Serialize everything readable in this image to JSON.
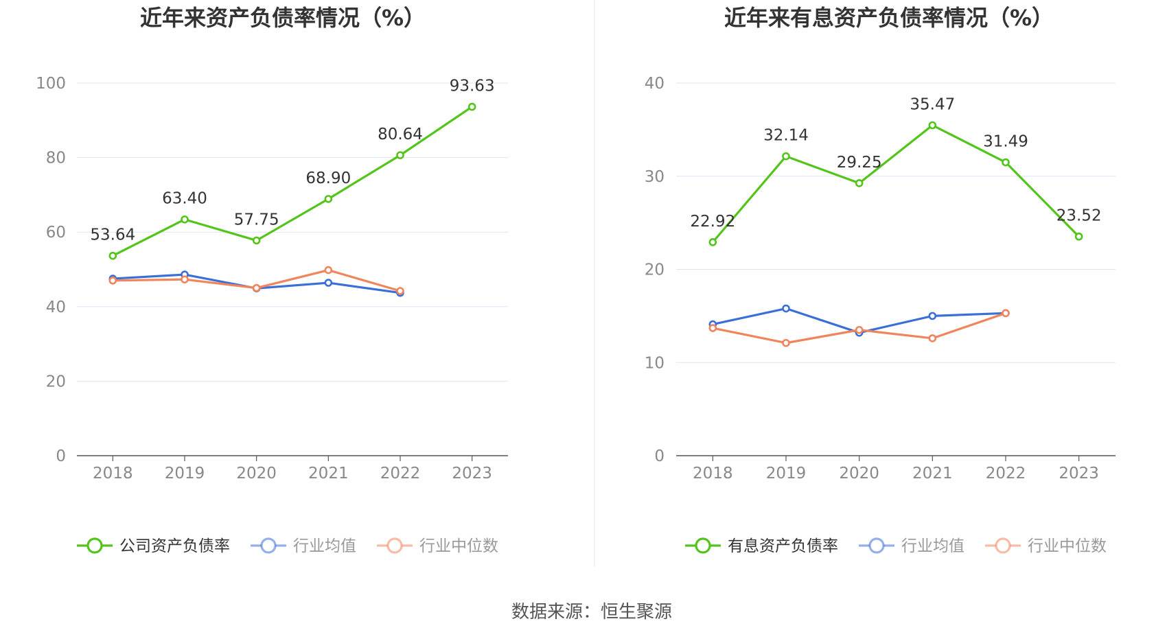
{
  "chart_data": [
    {
      "type": "line",
      "title": "近年来资产负债率情况（%）",
      "xlabel": "",
      "ylabel": "",
      "categories": [
        "2018",
        "2019",
        "2020",
        "2021",
        "2022",
        "2023"
      ],
      "ylim": [
        0,
        100
      ],
      "yticks": [
        0,
        20,
        40,
        60,
        80,
        100
      ],
      "grid": true,
      "legend_position": "bottom",
      "series": [
        {
          "name": "公司资产负债率",
          "color": "#52c41a",
          "show_labels": true,
          "labels": [
            "53.64",
            "63.40",
            "57.75",
            "68.90",
            "80.64",
            "93.63"
          ],
          "values": [
            53.64,
            63.4,
            57.75,
            68.9,
            80.64,
            93.63
          ]
        },
        {
          "name": "行业均值",
          "color": "#3a6fd8",
          "show_labels": false,
          "values": [
            47.5,
            48.6,
            44.9,
            46.4,
            43.7,
            null
          ]
        },
        {
          "name": "行业中位数",
          "color": "#f0845c",
          "show_labels": false,
          "values": [
            47.0,
            47.3,
            45.0,
            49.8,
            44.2,
            null
          ]
        }
      ]
    },
    {
      "type": "line",
      "title": "近年来有息资产负债率情况（%）",
      "xlabel": "",
      "ylabel": "",
      "categories": [
        "2018",
        "2019",
        "2020",
        "2021",
        "2022",
        "2023"
      ],
      "ylim": [
        0,
        40
      ],
      "yticks": [
        0,
        10,
        20,
        30,
        40
      ],
      "grid": true,
      "legend_position": "bottom",
      "series": [
        {
          "name": "有息资产负债率",
          "color": "#52c41a",
          "show_labels": true,
          "labels": [
            "22.92",
            "32.14",
            "29.25",
            "35.47",
            "31.49",
            "23.52"
          ],
          "values": [
            22.92,
            32.14,
            29.25,
            35.47,
            31.49,
            23.52
          ]
        },
        {
          "name": "行业均值",
          "color": "#3a6fd8",
          "show_labels": false,
          "values": [
            14.1,
            15.8,
            13.2,
            15.0,
            15.3,
            null
          ]
        },
        {
          "name": "行业中位数",
          "color": "#f0845c",
          "show_labels": false,
          "values": [
            13.7,
            12.1,
            13.5,
            12.6,
            15.3,
            null
          ]
        }
      ]
    }
  ],
  "source_text": "数据来源：恒生聚源"
}
